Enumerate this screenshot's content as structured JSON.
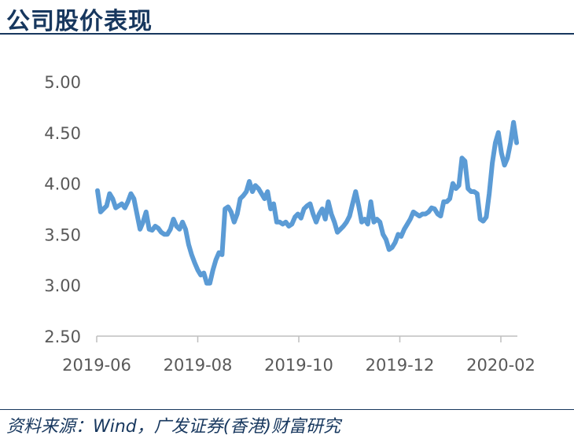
{
  "title": "公司股价表现",
  "source": "资料来源：Wind，广发证券(香港)财富研究",
  "colors": {
    "line": "#5b9bd5",
    "axis": "#bfbfbf",
    "text": "#595959",
    "title": "#17375e"
  },
  "chart_data": {
    "type": "line",
    "title": "",
    "xlabel": "",
    "ylabel": "",
    "ylim": [
      2.5,
      5.0
    ],
    "yticks": [
      "5.00",
      "4.50",
      "4.00",
      "3.50",
      "3.00",
      "2.50"
    ],
    "xticks": [
      "2019-06",
      "2019-08",
      "2019-10",
      "2019-12",
      "2020-02"
    ],
    "grid": false,
    "legend": "none",
    "series": [
      {
        "values": [
          3.93,
          3.72,
          3.75,
          3.78,
          3.9,
          3.85,
          3.76,
          3.78,
          3.8,
          3.76,
          3.82,
          3.9,
          3.85,
          3.7,
          3.55,
          3.62,
          3.72,
          3.55,
          3.54,
          3.58,
          3.56,
          3.52,
          3.5,
          3.5,
          3.55,
          3.65,
          3.58,
          3.55,
          3.62,
          3.55,
          3.4,
          3.3,
          3.22,
          3.15,
          3.1,
          3.12,
          3.02,
          3.02,
          3.15,
          3.25,
          3.32,
          3.3,
          3.75,
          3.77,
          3.72,
          3.62,
          3.7,
          3.85,
          3.88,
          3.92,
          4.02,
          3.92,
          3.98,
          3.95,
          3.9,
          3.85,
          3.92,
          3.75,
          3.8,
          3.62,
          3.62,
          3.6,
          3.62,
          3.58,
          3.6,
          3.67,
          3.7,
          3.66,
          3.75,
          3.78,
          3.8,
          3.7,
          3.62,
          3.7,
          3.75,
          3.65,
          3.82,
          3.7,
          3.62,
          3.52,
          3.55,
          3.58,
          3.62,
          3.68,
          3.8,
          3.92,
          3.78,
          3.62,
          3.65,
          3.6,
          3.82,
          3.62,
          3.65,
          3.62,
          3.5,
          3.45,
          3.35,
          3.37,
          3.42,
          3.5,
          3.48,
          3.55,
          3.6,
          3.65,
          3.72,
          3.7,
          3.68,
          3.7,
          3.7,
          3.72,
          3.76,
          3.75,
          3.7,
          3.68,
          3.82,
          3.82,
          3.85,
          4.0,
          3.95,
          3.98,
          4.25,
          4.22,
          3.95,
          3.92,
          3.92,
          3.9,
          3.65,
          3.63,
          3.67,
          3.9,
          4.2,
          4.4,
          4.5,
          4.3,
          4.18,
          4.25,
          4.4,
          4.6,
          4.4
        ]
      }
    ]
  }
}
